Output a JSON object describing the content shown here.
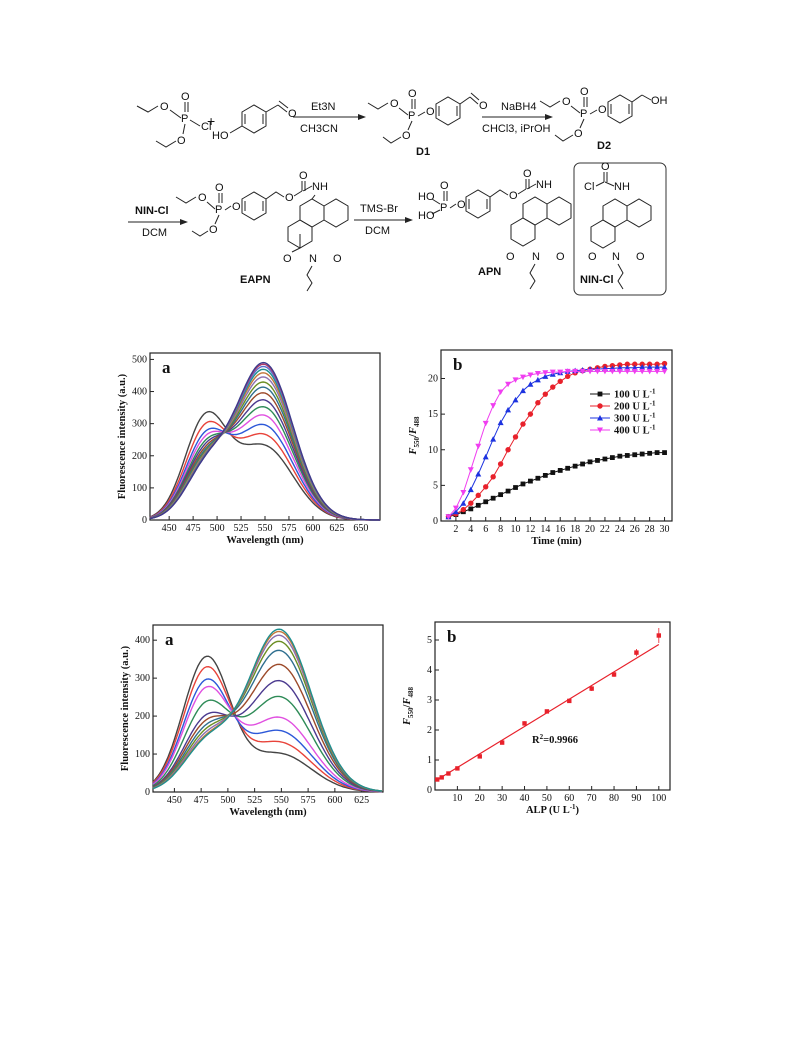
{
  "scheme": {
    "reagents": {
      "step1_top": "Et3N",
      "step1_bottom": "CH3CN",
      "step2_top": "NaBH4",
      "step2_bottom": "CHCl3, iPrOH",
      "step3_top": "NIN-Cl",
      "step3_bottom": "DCM",
      "step4_top": "TMS-Br",
      "step4_bottom": "DCM"
    },
    "compounds": {
      "d1": "D1",
      "d2": "D2",
      "eapn": "EAPN",
      "apn": "APN",
      "nincl": "NIN-Cl"
    },
    "atoms": {
      "P": "P",
      "O": "O",
      "Cl": "Cl",
      "HO": "HO",
      "OH": "OH",
      "NH": "NH",
      "N": "N",
      "plus": "+"
    }
  },
  "chart_data": [
    {
      "type": "line",
      "panel_label": "a",
      "xlabel": "Wavelength (nm)",
      "ylabel": "Fluorescence intensity (a.u.)",
      "xlim": [
        430,
        670
      ],
      "ylim": [
        0,
        520
      ],
      "xticks": [
        450,
        475,
        500,
        525,
        550,
        575,
        600,
        625,
        650
      ],
      "yticks": [
        0,
        100,
        200,
        300,
        400,
        500
      ],
      "isosbestic": [
        512,
        262
      ],
      "series_peaks": [
        {
          "blue_peak": 305,
          "green_peak": 228,
          "color": "#444444"
        },
        {
          "blue_peak": 268,
          "green_peak": 262,
          "color": "#e8433a"
        },
        {
          "blue_peak": 240,
          "green_peak": 292,
          "color": "#2c58d8"
        },
        {
          "blue_peak": 222,
          "green_peak": 322,
          "color": "#e050e0"
        },
        {
          "blue_peak": 205,
          "green_peak": 348,
          "color": "#2e8b57"
        },
        {
          "blue_peak": 192,
          "green_peak": 370,
          "color": "#4b3a8f"
        },
        {
          "blue_peak": 180,
          "green_peak": 392,
          "color": "#9c4a2a"
        },
        {
          "blue_peak": 170,
          "green_peak": 410,
          "color": "#2f6f8f"
        },
        {
          "blue_peak": 162,
          "green_peak": 426,
          "color": "#6b8e23"
        },
        {
          "blue_peak": 155,
          "green_peak": 442,
          "color": "#8b6fb0"
        },
        {
          "blue_peak": 150,
          "green_peak": 455,
          "color": "#c2773a"
        },
        {
          "blue_peak": 146,
          "green_peak": 466,
          "color": "#1e9090"
        },
        {
          "blue_peak": 143,
          "green_peak": 475,
          "color": "#5a6fcf"
        },
        {
          "blue_peak": 141,
          "green_peak": 482,
          "color": "#b03a6a"
        },
        {
          "blue_peak": 140,
          "green_peak": 487,
          "color": "#3c3c8c"
        }
      ]
    },
    {
      "type": "line",
      "panel_label": "b",
      "xlabel": "Time (min)",
      "ylabel": "F550/F488",
      "xlim": [
        0,
        31
      ],
      "ylim": [
        0,
        24
      ],
      "xticks": [
        2,
        4,
        6,
        8,
        10,
        12,
        14,
        16,
        18,
        20,
        22,
        24,
        26,
        28,
        30
      ],
      "yticks": [
        0,
        5,
        10,
        15,
        20
      ],
      "x": [
        1,
        2,
        3,
        4,
        5,
        6,
        7,
        8,
        9,
        10,
        11,
        12,
        13,
        14,
        15,
        16,
        17,
        18,
        19,
        20,
        21,
        22,
        23,
        24,
        25,
        26,
        27,
        28,
        29,
        30
      ],
      "series": [
        {
          "name": "100 U L-1",
          "color": "#111111",
          "marker": "square",
          "values": [
            0.6,
            0.9,
            1.3,
            1.7,
            2.2,
            2.7,
            3.2,
            3.7,
            4.2,
            4.7,
            5.2,
            5.6,
            6.0,
            6.4,
            6.8,
            7.1,
            7.4,
            7.7,
            8.0,
            8.3,
            8.5,
            8.7,
            8.9,
            9.1,
            9.2,
            9.3,
            9.4,
            9.5,
            9.6,
            9.6
          ]
        },
        {
          "name": "200 U L-1",
          "color": "#e8212b",
          "marker": "circle",
          "values": [
            0.6,
            1.0,
            1.6,
            2.5,
            3.6,
            4.8,
            6.2,
            8.0,
            10.0,
            11.8,
            13.6,
            15.0,
            16.6,
            17.8,
            18.8,
            19.6,
            20.3,
            20.8,
            21.1,
            21.3,
            21.5,
            21.7,
            21.8,
            21.9,
            22.0,
            22.0,
            22.0,
            22.0,
            22.0,
            22.1
          ]
        },
        {
          "name": "300 U L-1",
          "color": "#1d33e0",
          "marker": "triangle",
          "values": [
            0.6,
            1.3,
            2.5,
            4.4,
            6.6,
            9.0,
            11.5,
            13.8,
            15.6,
            17.0,
            18.3,
            19.2,
            19.8,
            20.3,
            20.6,
            20.8,
            21.0,
            21.1,
            21.2,
            21.3,
            21.3,
            21.4,
            21.4,
            21.5,
            21.5,
            21.5,
            21.6,
            21.6,
            21.6,
            21.6
          ]
        },
        {
          "name": "400 U L-1",
          "color": "#f03ef0",
          "marker": "tri-down",
          "values": [
            0.6,
            1.8,
            4.0,
            7.2,
            10.5,
            13.7,
            16.2,
            18.1,
            19.2,
            19.8,
            20.2,
            20.5,
            20.7,
            20.8,
            20.9,
            20.9,
            21.0,
            21.0,
            21.0,
            21.0,
            21.0,
            21.0,
            21.0,
            21.0,
            21.0,
            21.0,
            21.0,
            21.0,
            21.0,
            21.0
          ]
        }
      ],
      "legend_placement": "right"
    },
    {
      "type": "line",
      "panel_label": "a",
      "xlabel": "Wavelength (nm)",
      "ylabel": "Fluorescence intensity (a.u.)",
      "xlim": [
        430,
        645
      ],
      "ylim": [
        0,
        440
      ],
      "xticks": [
        450,
        475,
        500,
        525,
        550,
        575,
        600,
        625
      ],
      "yticks": [
        0,
        100,
        200,
        300,
        400
      ],
      "isosbestic": [
        510,
        225
      ],
      "series_peaks": [
        {
          "blue_peak": 350,
          "green_peak": 100,
          "color": "#444444"
        },
        {
          "blue_peak": 320,
          "green_peak": 130,
          "color": "#e8433a"
        },
        {
          "blue_peak": 285,
          "green_peak": 160,
          "color": "#2c58d8"
        },
        {
          "blue_peak": 262,
          "green_peak": 195,
          "color": "#e050e0"
        },
        {
          "blue_peak": 220,
          "green_peak": 250,
          "color": "#2e8b57"
        },
        {
          "blue_peak": 182,
          "green_peak": 292,
          "color": "#4b3a8f"
        },
        {
          "blue_peak": 165,
          "green_peak": 335,
          "color": "#9c4a2a"
        },
        {
          "blue_peak": 150,
          "green_peak": 372,
          "color": "#2f6f8f"
        },
        {
          "blue_peak": 138,
          "green_peak": 396,
          "color": "#6b8e23"
        },
        {
          "blue_peak": 128,
          "green_peak": 412,
          "color": "#8b6fb0"
        },
        {
          "blue_peak": 120,
          "green_peak": 422,
          "color": "#c2773a"
        },
        {
          "blue_peak": 116,
          "green_peak": 428,
          "color": "#1e9090"
        }
      ]
    },
    {
      "type": "scatter",
      "panel_label": "b",
      "xlabel": "ALP (U L-1)",
      "ylabel": "F550/F488",
      "annotation": "R2=0.9966",
      "xlim": [
        0,
        105
      ],
      "ylim": [
        0,
        5.6
      ],
      "xticks": [
        10,
        20,
        30,
        40,
        50,
        60,
        70,
        80,
        90,
        100
      ],
      "yticks": [
        0,
        1,
        2,
        3,
        4,
        5
      ],
      "x": [
        1,
        3,
        6,
        10,
        20,
        30,
        40,
        50,
        60,
        70,
        80,
        90,
        100
      ],
      "y": [
        0.35,
        0.42,
        0.55,
        0.72,
        1.12,
        1.58,
        2.22,
        2.62,
        2.97,
        3.38,
        3.85,
        4.58,
        5.15
      ],
      "error": [
        0.03,
        0.03,
        0.04,
        0.04,
        0.05,
        0.05,
        0.07,
        0.06,
        0.07,
        0.08,
        0.08,
        0.12,
        0.25
      ],
      "fit_line": {
        "x": [
          1,
          100
        ],
        "y": [
          0.34,
          4.85
        ]
      },
      "color": "#e8212b"
    }
  ]
}
